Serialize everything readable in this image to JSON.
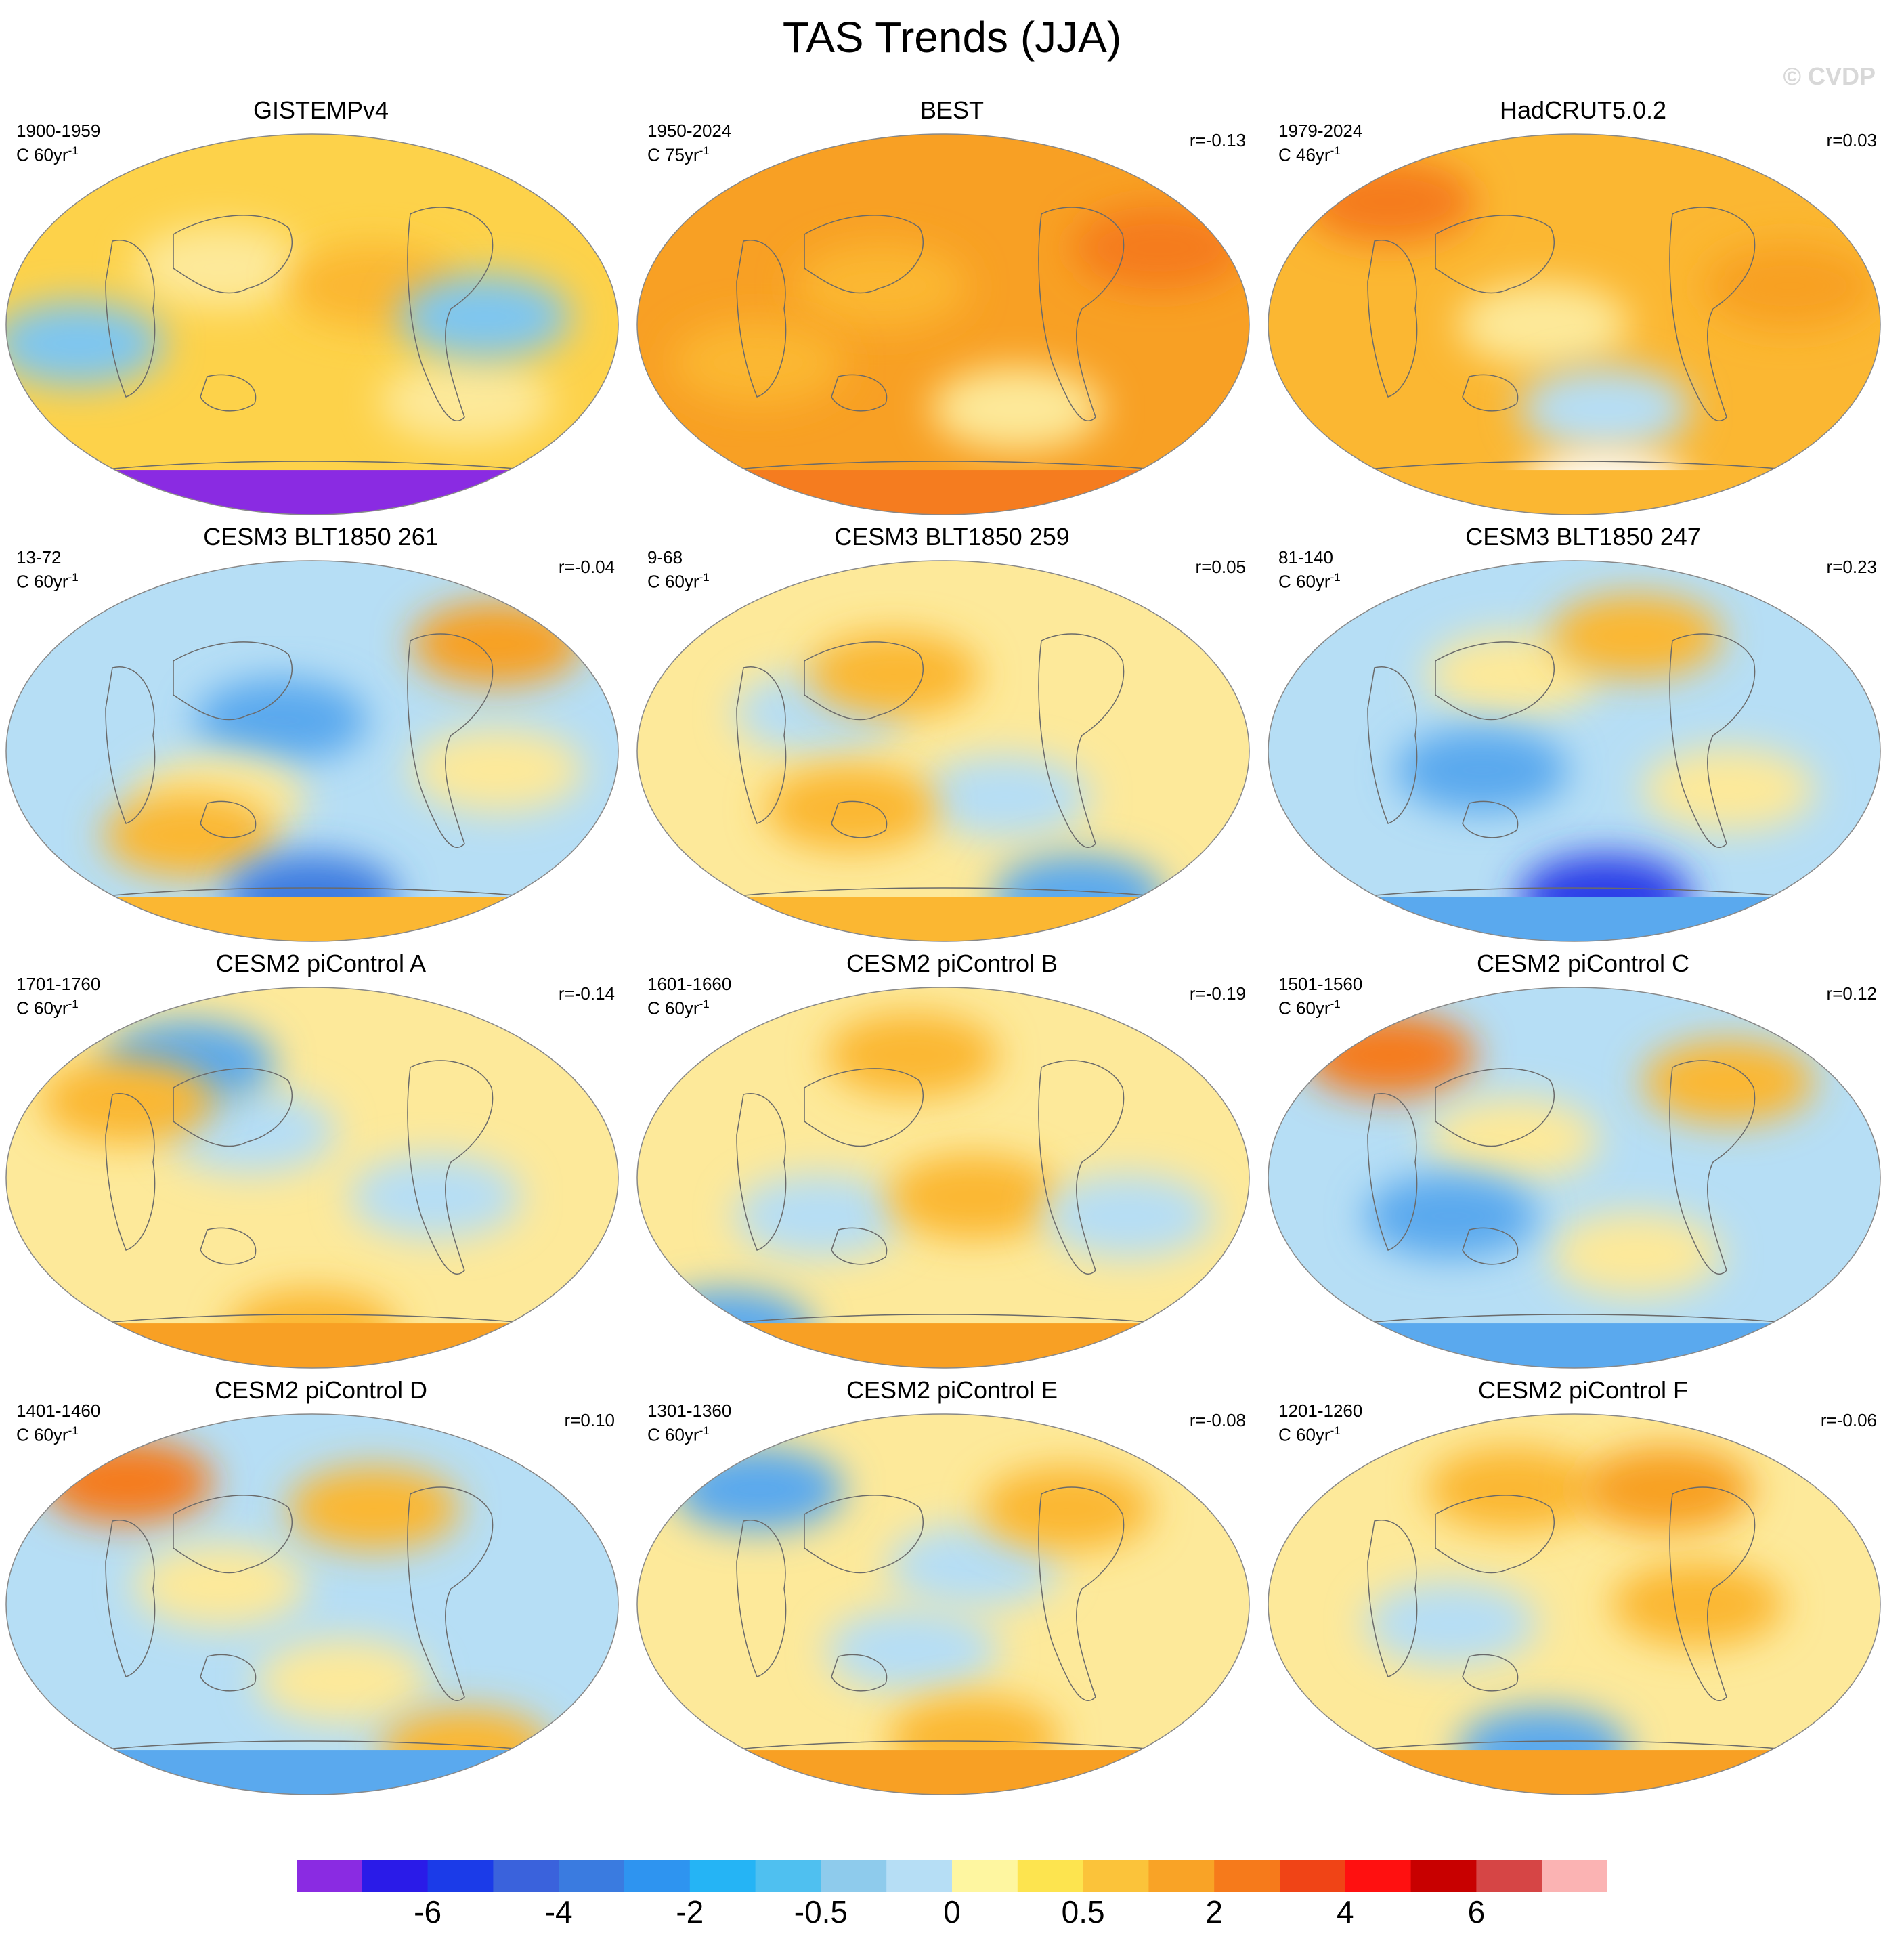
{
  "title": "TAS Trends (JJA)",
  "watermark": "© CVDP",
  "units_prefix": "C",
  "units_suffix": "yr",
  "units_exponent": "-1",
  "panels": [
    {
      "title": "GISTEMPv4",
      "period": "1900-1959",
      "trend_length": "60",
      "r": "",
      "base": "#fdd24a",
      "spots": [
        [
          "#fde99a",
          0.35,
          0.35
        ],
        [
          "#7ec6f0",
          0.12,
          0.55
        ],
        [
          "#fbb732",
          0.6,
          0.4
        ],
        [
          "#fde99a",
          0.75,
          0.7
        ],
        [
          "#7ec6f0",
          0.78,
          0.48
        ]
      ],
      "antarctic": "#8a2be2"
    },
    {
      "title": "BEST",
      "period": "1950-2024",
      "trend_length": "75",
      "r": "r=-0.13",
      "base": "#f8a024",
      "spots": [
        [
          "#fbb732",
          0.4,
          0.4
        ],
        [
          "#fde99a",
          0.62,
          0.72
        ],
        [
          "#f57c1f",
          0.85,
          0.3
        ],
        [
          "#fbb732",
          0.2,
          0.6
        ]
      ],
      "antarctic": "#f57c1f"
    },
    {
      "title": "HadCRUT5.0.2",
      "period": "1979-2024",
      "trend_length": "46",
      "r": "r=0.03",
      "base": "#fbb732",
      "spots": [
        [
          "#f57c1f",
          0.2,
          0.18
        ],
        [
          "#fde99a",
          0.45,
          0.5
        ],
        [
          "#b6def5",
          0.55,
          0.72
        ],
        [
          "#f8a024",
          0.85,
          0.4
        ],
        [
          "#ffffff",
          0.55,
          0.94
        ]
      ],
      "antarctic": "#fbb732"
    },
    {
      "title": "CESM3 BLT1850 261",
      "period": "13-72",
      "trend_length": "60",
      "r": "r=-0.04",
      "base": "#b6def5",
      "spots": [
        [
          "#5aa9ee",
          0.45,
          0.42
        ],
        [
          "#fde99a",
          0.35,
          0.62
        ],
        [
          "#fbb732",
          0.3,
          0.72
        ],
        [
          "#fde99a",
          0.8,
          0.55
        ],
        [
          "#f8a024",
          0.8,
          0.22
        ],
        [
          "#3d7be0",
          0.5,
          0.88
        ]
      ],
      "antarctic": "#fbb732"
    },
    {
      "title": "CESM3 BLT1850 259",
      "period": "9-68",
      "trend_length": "60",
      "r": "r=0.05",
      "base": "#fde99a",
      "spots": [
        [
          "#b6def5",
          0.3,
          0.4
        ],
        [
          "#fbb732",
          0.42,
          0.3
        ],
        [
          "#b6def5",
          0.6,
          0.62
        ],
        [
          "#fbb732",
          0.35,
          0.65
        ],
        [
          "#5aa9ee",
          0.72,
          0.88
        ]
      ],
      "antarctic": "#fbb732"
    },
    {
      "title": "CESM3 BLT1850 247",
      "period": "81-140",
      "trend_length": "60",
      "r": "r=0.23",
      "base": "#b6def5",
      "spots": [
        [
          "#fde99a",
          0.4,
          0.3
        ],
        [
          "#fbb732",
          0.6,
          0.2
        ],
        [
          "#fde99a",
          0.75,
          0.6
        ],
        [
          "#5aa9ee",
          0.35,
          0.55
        ],
        [
          "#2a3ee8",
          0.55,
          0.88
        ]
      ],
      "antarctic": "#5aa9ee"
    },
    {
      "title": "CESM2 piControl A",
      "period": "1701-1760",
      "trend_length": "60",
      "r": "r=-0.14",
      "base": "#fde99a",
      "spots": [
        [
          "#b6def5",
          0.4,
          0.38
        ],
        [
          "#5aa9ee",
          0.3,
          0.2
        ],
        [
          "#fbb732",
          0.2,
          0.3
        ],
        [
          "#b6def5",
          0.7,
          0.55
        ],
        [
          "#fbb732",
          0.5,
          0.9
        ]
      ],
      "antarctic": "#f8a024"
    },
    {
      "title": "CESM2 piControl B",
      "period": "1601-1660",
      "trend_length": "60",
      "r": "r=-0.19",
      "base": "#fde99a",
      "spots": [
        [
          "#fbb732",
          0.45,
          0.18
        ],
        [
          "#b6def5",
          0.3,
          0.6
        ],
        [
          "#fbb732",
          0.55,
          0.55
        ],
        [
          "#b6def5",
          0.8,
          0.6
        ],
        [
          "#5aa9ee",
          0.15,
          0.9
        ]
      ],
      "antarctic": "#f8a024"
    },
    {
      "title": "CESM2 piControl C",
      "period": "1501-1560",
      "trend_length": "60",
      "r": "r=0.12",
      "base": "#b6def5",
      "spots": [
        [
          "#f57c1f",
          0.2,
          0.18
        ],
        [
          "#fde99a",
          0.4,
          0.4
        ],
        [
          "#fbb732",
          0.75,
          0.25
        ],
        [
          "#fde99a",
          0.6,
          0.7
        ],
        [
          "#5aa9ee",
          0.3,
          0.6
        ]
      ],
      "antarctic": "#5aa9ee"
    },
    {
      "title": "CESM2 piControl D",
      "period": "1401-1460",
      "trend_length": "60",
      "r": "r=0.10",
      "base": "#b6def5",
      "spots": [
        [
          "#f57c1f",
          0.2,
          0.18
        ],
        [
          "#fde99a",
          0.35,
          0.45
        ],
        [
          "#fbb732",
          0.6,
          0.25
        ],
        [
          "#fde99a",
          0.55,
          0.7
        ],
        [
          "#fbb732",
          0.75,
          0.88
        ]
      ],
      "antarctic": "#5aa9ee"
    },
    {
      "title": "CESM2 piControl E",
      "period": "1301-1360",
      "trend_length": "60",
      "r": "r=-0.08",
      "base": "#fde99a",
      "spots": [
        [
          "#5aa9ee",
          0.2,
          0.2
        ],
        [
          "#b6def5",
          0.55,
          0.4
        ],
        [
          "#fbb732",
          0.7,
          0.25
        ],
        [
          "#b6def5",
          0.45,
          0.62
        ],
        [
          "#fbb732",
          0.55,
          0.85
        ]
      ],
      "antarctic": "#f8a024"
    },
    {
      "title": "CESM2 piControl F",
      "period": "1201-1260",
      "trend_length": "60",
      "r": "r=-0.06",
      "base": "#fde99a",
      "spots": [
        [
          "#fbb732",
          0.4,
          0.2
        ],
        [
          "#f8a024",
          0.65,
          0.2
        ],
        [
          "#b6def5",
          0.3,
          0.55
        ],
        [
          "#fbb732",
          0.7,
          0.5
        ],
        [
          "#5aa9ee",
          0.45,
          0.88
        ]
      ],
      "antarctic": "#f8a024"
    }
  ],
  "colorbar": {
    "colors": [
      "#8a2be2",
      "#2a1be8",
      "#1b3be8",
      "#3a62dc",
      "#3a7be0",
      "#2e94f0",
      "#25b4f5",
      "#4fc0f0",
      "#8ecbec",
      "#b6def5",
      "#fef6a0",
      "#fde44f",
      "#fbc33a",
      "#f9a326",
      "#f67a1b",
      "#f04416",
      "#ff1010",
      "#c80000",
      "#d64545",
      "#fbb3b3"
    ],
    "labels": [
      "-6",
      "-4",
      "-2",
      "-0.5",
      "0",
      "0.5",
      "2",
      "4",
      "6"
    ]
  }
}
